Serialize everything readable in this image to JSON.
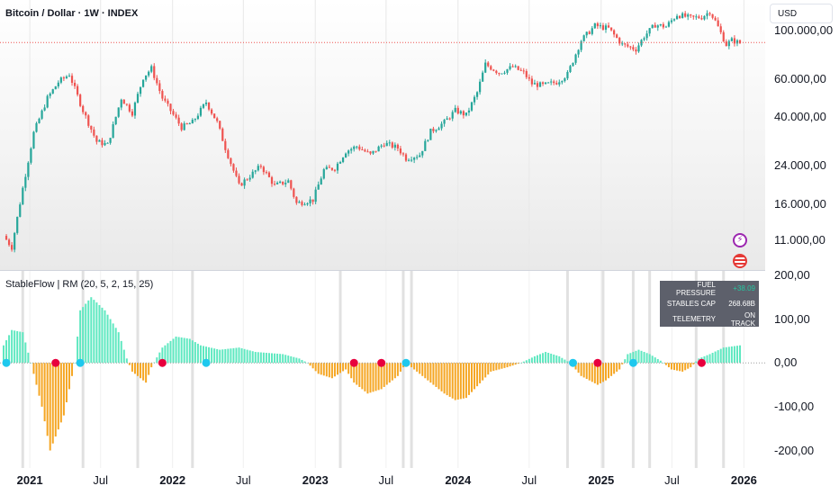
{
  "header": {
    "title": "Bitcoin / Dollar · 1W · INDEX",
    "currency_button": "USD"
  },
  "indicator": {
    "title": "StableFlow | RM (20, 5, 2, 15, 25)",
    "telemetry": [
      {
        "key": "FUEL PRESSURE",
        "value": "+38.09"
      },
      {
        "key": "STABLES CAP",
        "value": "268.68B"
      },
      {
        "key": "TELEMETRY",
        "value": "ON TRACK"
      }
    ]
  },
  "badges": {
    "events": "bolt-icon",
    "economic": "us-flag-icon"
  },
  "colors": {
    "up": "#26a69a",
    "down": "#ef5350",
    "pos_hist": "#5ee8c0",
    "neg_hist": "#f5a623",
    "dot_buy": "#1ec8ee",
    "dot_sell": "#e8003d",
    "ref_line": "#ef5350"
  },
  "chart_data": [
    {
      "type": "candlestick",
      "title": "Bitcoin / Dollar · 1W · INDEX",
      "y_scale": "log",
      "ylim": [
        8500,
        130000
      ],
      "y_ticks": [
        11000,
        16000,
        24000,
        40000,
        60000,
        100000
      ],
      "y_tick_labels": [
        "11.000,00",
        "16.000,00",
        "24.000,00",
        "40.000,00",
        "60.000,00",
        "100.000,00"
      ],
      "x_range": [
        "2020-10-26",
        "2025-12-22"
      ],
      "x_ticks": [
        {
          "date": "2021-01-01",
          "label": "2021",
          "year": true
        },
        {
          "date": "2021-07-01",
          "label": "Jul",
          "year": false
        },
        {
          "date": "2022-01-01",
          "label": "2022",
          "year": true
        },
        {
          "date": "2022-07-01",
          "label": "Jul",
          "year": false
        },
        {
          "date": "2023-01-01",
          "label": "2023",
          "year": true
        },
        {
          "date": "2023-07-01",
          "label": "Jul",
          "year": false
        },
        {
          "date": "2024-01-01",
          "label": "2024",
          "year": true
        },
        {
          "date": "2024-07-01",
          "label": "Jul",
          "year": false
        },
        {
          "date": "2025-01-01",
          "label": "2025",
          "year": true
        },
        {
          "date": "2025-07-01",
          "label": "Jul",
          "year": false
        },
        {
          "date": "2026-01-01",
          "label": "2026",
          "year": true
        }
      ],
      "reference_line": 88000,
      "price_path": [
        [
          "2020-10-26",
          11500
        ],
        [
          "2020-11-16",
          10200
        ],
        [
          "2020-12-14",
          19000
        ],
        [
          "2021-01-11",
          34000
        ],
        [
          "2021-02-15",
          49000
        ],
        [
          "2021-03-15",
          58000
        ],
        [
          "2021-04-12",
          63000
        ],
        [
          "2021-05-17",
          43000
        ],
        [
          "2021-06-21",
          31000
        ],
        [
          "2021-07-19",
          30000
        ],
        [
          "2021-08-23",
          49000
        ],
        [
          "2021-09-20",
          42000
        ],
        [
          "2021-10-18",
          61000
        ],
        [
          "2021-11-08",
          67000
        ],
        [
          "2021-12-06",
          49000
        ],
        [
          "2022-01-24",
          36000
        ],
        [
          "2022-02-21",
          38000
        ],
        [
          "2022-03-28",
          47000
        ],
        [
          "2022-04-25",
          38000
        ],
        [
          "2022-05-16",
          29000
        ],
        [
          "2022-06-20",
          19500
        ],
        [
          "2022-08-15",
          24000
        ],
        [
          "2022-09-19",
          19500
        ],
        [
          "2022-10-24",
          20500
        ],
        [
          "2022-11-14",
          16200
        ],
        [
          "2022-12-26",
          16800
        ],
        [
          "2023-01-23",
          23000
        ],
        [
          "2023-02-20",
          23500
        ],
        [
          "2023-03-20",
          28000
        ],
        [
          "2023-04-17",
          29500
        ],
        [
          "2023-05-22",
          27000
        ],
        [
          "2023-06-26",
          30500
        ],
        [
          "2023-07-31",
          29000
        ],
        [
          "2023-08-21",
          26000
        ],
        [
          "2023-09-25",
          27000
        ],
        [
          "2023-10-23",
          34500
        ],
        [
          "2023-11-27",
          38000
        ],
        [
          "2023-12-25",
          43000
        ],
        [
          "2024-01-22",
          41000
        ],
        [
          "2024-02-19",
          52000
        ],
        [
          "2024-03-11",
          70000
        ],
        [
          "2024-04-15",
          64000
        ],
        [
          "2024-05-20",
          68000
        ],
        [
          "2024-06-17",
          64000
        ],
        [
          "2024-07-08",
          57000
        ],
        [
          "2024-08-05",
          56000
        ],
        [
          "2024-09-09",
          58000
        ],
        [
          "2024-10-07",
          63000
        ],
        [
          "2024-11-11",
          90000
        ],
        [
          "2024-12-16",
          105000
        ],
        [
          "2025-01-20",
          102000
        ],
        [
          "2025-02-24",
          86000
        ],
        [
          "2025-03-31",
          82000
        ],
        [
          "2025-04-21",
          94000
        ],
        [
          "2025-05-19",
          106000
        ],
        [
          "2025-06-16",
          104000
        ],
        [
          "2025-07-14",
          118000
        ],
        [
          "2025-08-18",
          114000
        ],
        [
          "2025-09-15",
          115000
        ],
        [
          "2025-10-06",
          122000
        ],
        [
          "2025-10-20",
          110000
        ],
        [
          "2025-11-17",
          86000
        ],
        [
          "2025-12-01",
          90000
        ],
        [
          "2025-12-22",
          87500
        ]
      ]
    },
    {
      "type": "histogram",
      "title": "StableFlow | RM (20, 5, 2, 15, 25)",
      "ylim": [
        -240,
        210
      ],
      "y_ticks": [
        200,
        100,
        0,
        -100,
        -200
      ],
      "y_tick_labels": [
        "200,00",
        "100,00",
        "0,00",
        "-100,00",
        "-200,00"
      ],
      "value_path": [
        [
          "2020-10-26",
          40
        ],
        [
          "2020-11-16",
          75
        ],
        [
          "2020-12-14",
          70
        ],
        [
          "2021-01-04",
          0
        ],
        [
          "2021-02-01",
          -100
        ],
        [
          "2021-02-22",
          -200
        ],
        [
          "2021-03-29",
          -120
        ],
        [
          "2021-04-26",
          0
        ],
        [
          "2021-05-10",
          120
        ],
        [
          "2021-06-07",
          150
        ],
        [
          "2021-07-12",
          120
        ],
        [
          "2021-08-16",
          70
        ],
        [
          "2021-09-06",
          10
        ],
        [
          "2021-09-20",
          -20
        ],
        [
          "2021-10-25",
          -45
        ],
        [
          "2021-11-08",
          -10
        ],
        [
          "2021-12-06",
          35
        ],
        [
          "2022-01-10",
          60
        ],
        [
          "2022-02-14",
          55
        ],
        [
          "2022-03-14",
          40
        ],
        [
          "2022-05-02",
          30
        ],
        [
          "2022-06-20",
          35
        ],
        [
          "2022-08-01",
          25
        ],
        [
          "2022-10-10",
          20
        ],
        [
          "2022-11-21",
          10
        ],
        [
          "2022-12-12",
          0
        ],
        [
          "2023-01-09",
          -25
        ],
        [
          "2023-02-13",
          -35
        ],
        [
          "2023-03-20",
          -15
        ],
        [
          "2023-04-10",
          -45
        ],
        [
          "2023-05-15",
          -70
        ],
        [
          "2023-06-19",
          -60
        ],
        [
          "2023-07-31",
          -30
        ],
        [
          "2023-08-21",
          0
        ],
        [
          "2023-09-18",
          -20
        ],
        [
          "2023-10-16",
          -40
        ],
        [
          "2023-11-27",
          -70
        ],
        [
          "2023-12-25",
          -85
        ],
        [
          "2024-01-22",
          -80
        ],
        [
          "2024-02-12",
          -60
        ],
        [
          "2024-03-25",
          -20
        ],
        [
          "2024-05-06",
          -10
        ],
        [
          "2024-06-10",
          0
        ],
        [
          "2024-07-15",
          15
        ],
        [
          "2024-08-12",
          25
        ],
        [
          "2024-09-16",
          15
        ],
        [
          "2024-10-14",
          0
        ],
        [
          "2024-11-11",
          -30
        ],
        [
          "2024-12-23",
          -50
        ],
        [
          "2025-01-13",
          -40
        ],
        [
          "2025-02-17",
          -15
        ],
        [
          "2025-03-10",
          20
        ],
        [
          "2025-04-07",
          30
        ],
        [
          "2025-05-05",
          20
        ],
        [
          "2025-06-02",
          5
        ],
        [
          "2025-06-30",
          -15
        ],
        [
          "2025-07-28",
          -20
        ],
        [
          "2025-08-18",
          -10
        ],
        [
          "2025-09-08",
          10
        ],
        [
          "2025-10-06",
          20
        ],
        [
          "2025-11-10",
          35
        ],
        [
          "2025-12-22",
          40
        ]
      ],
      "buy_dots": [
        "2020-11-02",
        "2021-05-10",
        "2022-03-28",
        "2023-08-21",
        "2024-10-21",
        "2025-03-24"
      ],
      "sell_dots": [
        "2021-03-08",
        "2021-12-06",
        "2023-04-10",
        "2023-06-19",
        "2024-12-23",
        "2025-09-15"
      ],
      "regime_bands": [
        "2020-12-14",
        "2021-05-17",
        "2021-10-04",
        "2022-02-21",
        "2023-03-06",
        "2023-08-14",
        "2023-09-04",
        "2024-10-07",
        "2025-01-06",
        "2025-03-24",
        "2025-05-05",
        "2025-09-01",
        "2025-11-10"
      ]
    }
  ]
}
